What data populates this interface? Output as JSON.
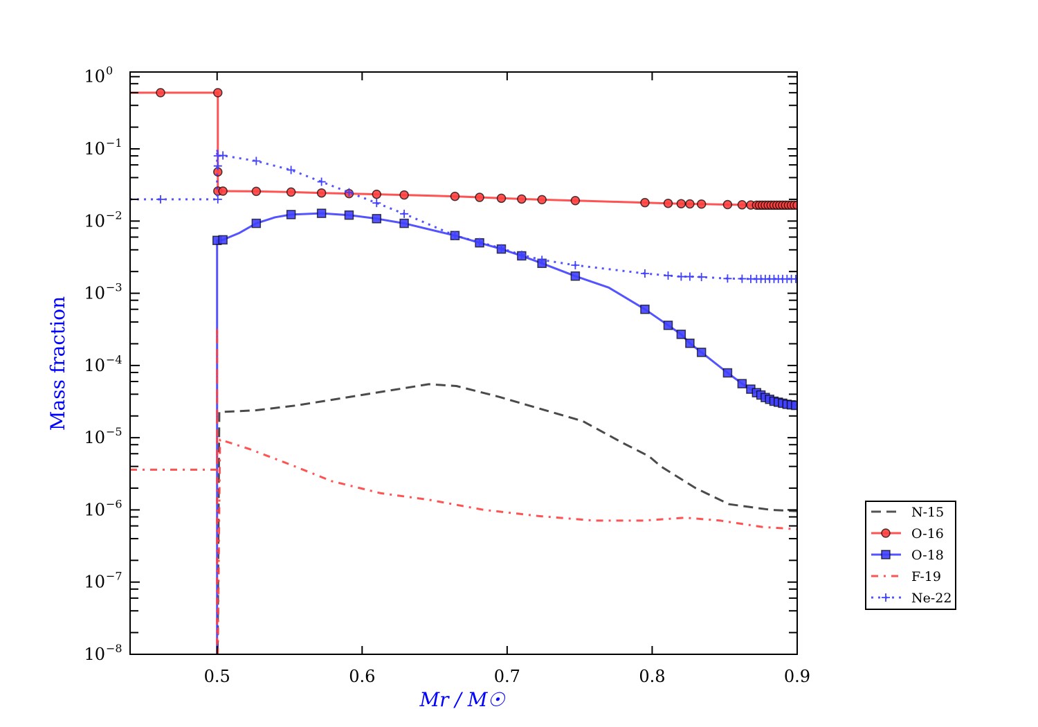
{
  "chart_data": {
    "type": "line",
    "title": "",
    "xlabel": "Mr / M☉",
    "ylabel": "Mass fraction",
    "xlim": [
      0.44,
      0.9
    ],
    "ylim": [
      1e-08,
      1.16
    ],
    "yscale": "log",
    "grid": false,
    "legend_position": "outside-right-bottom",
    "xticks": [
      0.5,
      0.6,
      0.7,
      0.8,
      0.9
    ],
    "xtick_labels": [
      "0.5",
      "0.6",
      "0.7",
      "0.8",
      "0.9"
    ],
    "yticks": [
      0,
      -1,
      -2,
      -3,
      -4,
      -5,
      -6,
      -7,
      -8
    ],
    "ytick_labels": [
      {
        "base": "10",
        "exp": "0"
      },
      {
        "base": "10",
        "exp": "−1"
      },
      {
        "base": "10",
        "exp": "−2"
      },
      {
        "base": "10",
        "exp": "−3"
      },
      {
        "base": "10",
        "exp": "−4"
      },
      {
        "base": "10",
        "exp": "−5"
      },
      {
        "base": "10",
        "exp": "−6"
      },
      {
        "base": "10",
        "exp": "−7"
      },
      {
        "base": "10",
        "exp": "−8"
      }
    ],
    "series": [
      {
        "name": "N-15",
        "color": "#404040",
        "style": "dashed",
        "marker": "none",
        "x": [
          0.5,
          0.5015,
          0.527,
          0.555,
          0.603,
          0.646,
          0.665,
          0.694,
          0.723,
          0.752,
          0.78,
          0.798,
          0.806,
          0.83,
          0.853,
          0.882,
          0.9
        ],
        "y": [
          1e-09,
          2.26e-05,
          2.4e-05,
          2.8e-05,
          4e-05,
          5.5e-05,
          5.2e-05,
          3.7e-05,
          2.5e-05,
          1.7e-05,
          8.4e-06,
          5.5e-06,
          4e-06,
          2e-06,
          1.2e-06,
          1e-06,
          9.6e-07
        ]
      },
      {
        "name": "O-16",
        "color": "#ff4040",
        "style": "solid",
        "marker": "circle",
        "x": [
          0.44,
          0.461,
          0.5005,
          0.5005,
          0.5005,
          0.504,
          0.527,
          0.551,
          0.572,
          0.591,
          0.61,
          0.629,
          0.664,
          0.681,
          0.696,
          0.71,
          0.724,
          0.747,
          0.795,
          0.811,
          0.82,
          0.826,
          0.834,
          0.852,
          0.862,
          0.868,
          0.9
        ],
        "y": [
          0.6,
          0.6,
          0.6,
          0.048,
          0.026,
          0.026,
          0.0258,
          0.0252,
          0.0245,
          0.024,
          0.0235,
          0.023,
          0.022,
          0.0213,
          0.0207,
          0.0202,
          0.0198,
          0.0192,
          0.018,
          0.0176,
          0.0174,
          0.0173,
          0.0172,
          0.0169,
          0.0168,
          0.0167,
          0.0166
        ],
        "marker_x": [
          0.461,
          0.5005,
          0.5005,
          0.5005,
          0.504,
          0.527,
          0.551,
          0.572,
          0.591,
          0.61,
          0.629,
          0.664,
          0.681,
          0.696,
          0.71,
          0.724,
          0.747,
          0.795,
          0.811,
          0.82,
          0.826,
          0.834,
          0.852,
          0.862,
          0.868,
          0.872,
          0.874,
          0.876,
          0.878,
          0.88,
          0.882,
          0.884,
          0.886,
          0.888,
          0.89,
          0.892,
          0.894,
          0.896,
          0.898,
          0.9
        ],
        "marker_y": [
          0.6,
          0.6,
          0.048,
          0.026,
          0.026,
          0.0258,
          0.0252,
          0.0245,
          0.024,
          0.0235,
          0.023,
          0.022,
          0.0213,
          0.0207,
          0.0202,
          0.0198,
          0.0192,
          0.018,
          0.0176,
          0.0174,
          0.0173,
          0.0172,
          0.0169,
          0.0168,
          0.0167,
          0.0166,
          0.0166,
          0.0166,
          0.0166,
          0.0166,
          0.0166,
          0.0166,
          0.0166,
          0.0166,
          0.0166,
          0.0166,
          0.0166,
          0.0166,
          0.0166,
          0.0166
        ]
      },
      {
        "name": "O-18",
        "color": "#4040ff",
        "style": "solid",
        "marker": "square",
        "x": [
          0.5,
          0.5,
          0.504,
          0.515,
          0.527,
          0.54,
          0.551,
          0.572,
          0.591,
          0.61,
          0.629,
          0.664,
          0.681,
          0.696,
          0.71,
          0.724,
          0.747,
          0.77,
          0.795,
          0.811,
          0.82,
          0.826,
          0.834,
          0.852,
          0.862,
          0.868,
          0.88,
          0.9
        ],
        "y": [
          1e-09,
          0.0054,
          0.0055,
          0.0068,
          0.0093,
          0.0113,
          0.0123,
          0.0128,
          0.0121,
          0.0108,
          0.0093,
          0.0063,
          0.005,
          0.0041,
          0.0033,
          0.0026,
          0.00173,
          0.0012,
          0.0006,
          0.00036,
          0.00027,
          0.000203,
          0.000152,
          7.9e-05,
          5.6e-05,
          4.7e-05,
          3.6e-05,
          2.8e-05
        ],
        "marker_x": [
          0.5,
          0.504,
          0.527,
          0.551,
          0.572,
          0.591,
          0.61,
          0.629,
          0.664,
          0.681,
          0.696,
          0.71,
          0.724,
          0.747,
          0.795,
          0.811,
          0.82,
          0.826,
          0.834,
          0.852,
          0.862,
          0.868,
          0.872,
          0.875,
          0.878,
          0.881,
          0.884,
          0.887,
          0.89,
          0.893,
          0.896,
          0.899
        ],
        "marker_y": [
          0.0054,
          0.0055,
          0.0093,
          0.0123,
          0.0128,
          0.0121,
          0.0108,
          0.0093,
          0.0063,
          0.005,
          0.0041,
          0.0033,
          0.0026,
          0.00173,
          0.0006,
          0.00036,
          0.00027,
          0.000203,
          0.000152,
          7.9e-05,
          5.6e-05,
          4.7e-05,
          4.2e-05,
          3.9e-05,
          3.6e-05,
          3.4e-05,
          3.2e-05,
          3.1e-05,
          3e-05,
          2.9e-05,
          2.85e-05,
          2.8e-05
        ]
      },
      {
        "name": "F-19",
        "color": "#ff4040",
        "style": "dashdot",
        "marker": "none",
        "x": [
          0.44,
          0.5,
          0.5,
          0.5,
          0.502,
          0.522,
          0.551,
          0.579,
          0.613,
          0.646,
          0.684,
          0.722,
          0.76,
          0.794,
          0.823,
          0.847,
          0.876,
          0.9
        ],
        "y": [
          3.6e-06,
          3.6e-06,
          0.00035,
          1e-09,
          9.4e-06,
          7e-06,
          4.2e-06,
          2.5e-06,
          1.7e-06,
          1.38e-06,
          1e-06,
          8.2e-07,
          7.1e-07,
          7.1e-07,
          7.8e-07,
          7.1e-07,
          5.8e-07,
          5.4e-07
        ]
      },
      {
        "name": "Ne-22",
        "color": "#4040ff",
        "style": "dotted",
        "marker": "plus",
        "x": [
          0.44,
          0.461,
          0.5,
          0.5,
          0.5005,
          0.504,
          0.527,
          0.551,
          0.572,
          0.591,
          0.61,
          0.629,
          0.664,
          0.681,
          0.696,
          0.71,
          0.724,
          0.747,
          0.795,
          0.811,
          0.82,
          0.826,
          0.834,
          0.852,
          0.862,
          0.868,
          0.9
        ],
        "y": [
          0.02,
          0.02,
          0.02,
          0.1,
          0.08,
          0.081,
          0.068,
          0.051,
          0.035,
          0.025,
          0.0178,
          0.0126,
          0.0063,
          0.0051,
          0.0042,
          0.0034,
          0.0029,
          0.00245,
          0.00188,
          0.00176,
          0.0017,
          0.0017,
          0.00168,
          0.0016,
          0.00159,
          0.00158,
          0.00158
        ],
        "marker_x": [
          0.461,
          0.5005,
          0.5005,
          0.5005,
          0.504,
          0.527,
          0.551,
          0.572,
          0.591,
          0.61,
          0.629,
          0.664,
          0.681,
          0.696,
          0.71,
          0.724,
          0.747,
          0.795,
          0.811,
          0.82,
          0.826,
          0.834,
          0.852,
          0.862,
          0.868,
          0.872,
          0.875,
          0.878,
          0.881,
          0.884,
          0.887,
          0.89,
          0.893,
          0.896,
          0.899
        ],
        "marker_y": [
          0.02,
          0.02,
          0.058,
          0.08,
          0.081,
          0.068,
          0.051,
          0.035,
          0.025,
          0.0178,
          0.0126,
          0.0063,
          0.0051,
          0.0042,
          0.0034,
          0.0029,
          0.00245,
          0.00188,
          0.00176,
          0.0017,
          0.0017,
          0.00168,
          0.0016,
          0.00159,
          0.00158,
          0.00158,
          0.00158,
          0.00158,
          0.00158,
          0.00158,
          0.00158,
          0.00158,
          0.00158,
          0.00158,
          0.00158
        ]
      }
    ]
  }
}
